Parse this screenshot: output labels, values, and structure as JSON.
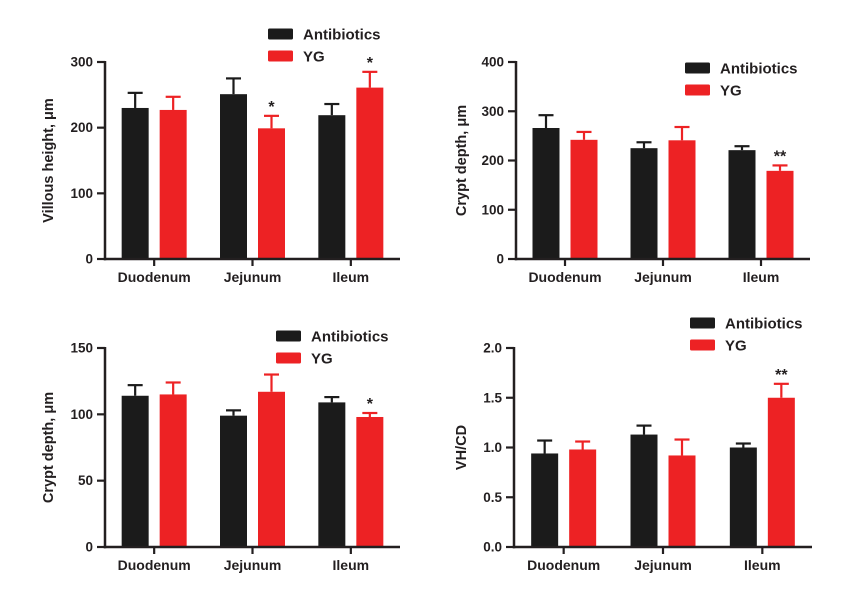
{
  "figure": {
    "background": "#ffffff",
    "axis_color": "#231f20",
    "text_color": "#231f20",
    "antibiotics_color": "#1b1b1b",
    "yg_color": "#ed2224"
  },
  "legend": {
    "items": [
      {
        "label": "Antibiotics",
        "color": "#1b1b1b"
      },
      {
        "label": "YG",
        "color": "#ed2224"
      }
    ]
  },
  "chart_data": [
    {
      "id": "villous-height",
      "type": "bar",
      "title": "",
      "xlabel": "",
      "ylabel": "Villous height, μm",
      "categories": [
        "Duodenum",
        "Jejunum",
        "Ileum"
      ],
      "ylim": [
        0,
        300
      ],
      "yticks": [
        "0",
        "100",
        "200",
        "300"
      ],
      "grid": false,
      "legend_position": "top-right",
      "error_bars": "upper",
      "series": [
        {
          "name": "Antibiotics",
          "color": "#1b1b1b",
          "values": [
            230,
            251,
            219
          ],
          "errors": [
            23,
            24,
            17
          ],
          "significance": [
            "",
            "",
            ""
          ]
        },
        {
          "name": "YG",
          "color": "#ed2224",
          "values": [
            227,
            199,
            261
          ],
          "errors": [
            20,
            19,
            24
          ],
          "significance": [
            "",
            "*",
            "*"
          ]
        }
      ]
    },
    {
      "id": "crypt-depth-top",
      "type": "bar",
      "title": "",
      "xlabel": "",
      "ylabel": "Crypt depth, μm",
      "categories": [
        "Duodenum",
        "Jejunum",
        "Ileum"
      ],
      "ylim": [
        0,
        400
      ],
      "yticks": [
        "0",
        "100",
        "200",
        "300",
        "400"
      ],
      "grid": false,
      "legend_position": "top-right",
      "error_bars": "upper",
      "series": [
        {
          "name": "Antibiotics",
          "color": "#1b1b1b",
          "values": [
            266,
            225,
            221
          ],
          "errors": [
            26,
            12,
            8
          ],
          "significance": [
            "",
            "",
            ""
          ]
        },
        {
          "name": "YG",
          "color": "#ed2224",
          "values": [
            242,
            241,
            179
          ],
          "errors": [
            16,
            27,
            11
          ],
          "significance": [
            "",
            "",
            "**"
          ]
        }
      ]
    },
    {
      "id": "crypt-depth-bottom",
      "type": "bar",
      "title": "",
      "xlabel": "",
      "ylabel": "Crypt depth, μm",
      "categories": [
        "Duodenum",
        "Jejunum",
        "Ileum"
      ],
      "ylim": [
        0,
        150
      ],
      "yticks": [
        "0",
        "50",
        "100",
        "150"
      ],
      "grid": false,
      "legend_position": "top-right",
      "error_bars": "upper",
      "series": [
        {
          "name": "Antibiotics",
          "color": "#1b1b1b",
          "values": [
            114,
            99,
            109
          ],
          "errors": [
            8,
            4,
            4
          ],
          "significance": [
            "",
            "",
            ""
          ]
        },
        {
          "name": "YG",
          "color": "#ed2224",
          "values": [
            115,
            117,
            98
          ],
          "errors": [
            9,
            13,
            3
          ],
          "significance": [
            "",
            "",
            "*"
          ]
        }
      ]
    },
    {
      "id": "vh-cd-ratio",
      "type": "bar",
      "title": "",
      "xlabel": "",
      "ylabel": "VH/CD",
      "categories": [
        "Duodenum",
        "Jejunum",
        "Ileum"
      ],
      "ylim": [
        0,
        2.0
      ],
      "yticks": [
        "0.0",
        "0.5",
        "1.0",
        "1.5",
        "2.0"
      ],
      "grid": false,
      "legend_position": "top-right",
      "error_bars": "upper",
      "series": [
        {
          "name": "Antibiotics",
          "color": "#1b1b1b",
          "values": [
            0.94,
            1.13,
            1.0
          ],
          "errors": [
            0.13,
            0.09,
            0.04
          ],
          "significance": [
            "",
            "",
            ""
          ]
        },
        {
          "name": "YG",
          "color": "#ed2224",
          "values": [
            0.98,
            0.92,
            1.5
          ],
          "errors": [
            0.08,
            0.16,
            0.14
          ],
          "significance": [
            "",
            "",
            "**"
          ]
        }
      ]
    }
  ]
}
